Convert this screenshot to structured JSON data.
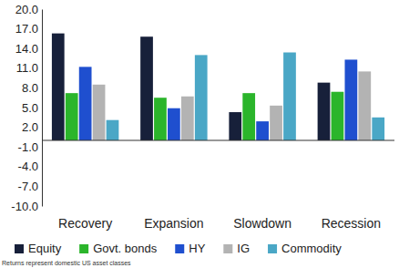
{
  "chart_data": {
    "type": "bar",
    "categories": [
      "Recovery",
      "Expansion",
      "Slowdown",
      "Recession"
    ],
    "series": [
      {
        "name": "Equity",
        "color": "#17203a",
        "values": [
          16.3,
          15.8,
          4.3,
          8.8
        ]
      },
      {
        "name": "Govt. bonds",
        "color": "#2bb52b",
        "values": [
          7.2,
          6.5,
          7.2,
          7.4
        ]
      },
      {
        "name": "HY",
        "color": "#1f4fcf",
        "values": [
          11.2,
          4.9,
          2.9,
          12.3
        ]
      },
      {
        "name": "IG",
        "color": "#b3b3b3",
        "values": [
          8.5,
          6.7,
          5.3,
          10.5
        ]
      },
      {
        "name": "Commodity",
        "color": "#4aa7c6",
        "values": [
          3.1,
          13.0,
          13.4,
          3.5
        ]
      }
    ],
    "ylim": [
      -10,
      20
    ],
    "yticks": [
      {
        "value": -10,
        "label": "-10.0"
      },
      {
        "value": -7,
        "label": "-7.0"
      },
      {
        "value": -4,
        "label": "-4.0"
      },
      {
        "value": -1,
        "label": "-1.0"
      },
      {
        "value": 2,
        "label": "2.0"
      },
      {
        "value": 5,
        "label": "5.0"
      },
      {
        "value": 8,
        "label": "8.0"
      },
      {
        "value": 11,
        "label": "11.0"
      },
      {
        "value": 14,
        "label": "14.0"
      },
      {
        "value": 17,
        "label": "17.0"
      },
      {
        "value": 20,
        "label": "20.0"
      }
    ],
    "grid": false,
    "legend": "bottom",
    "annotations": [
      "Returns represent domestic US asset classes"
    ]
  }
}
